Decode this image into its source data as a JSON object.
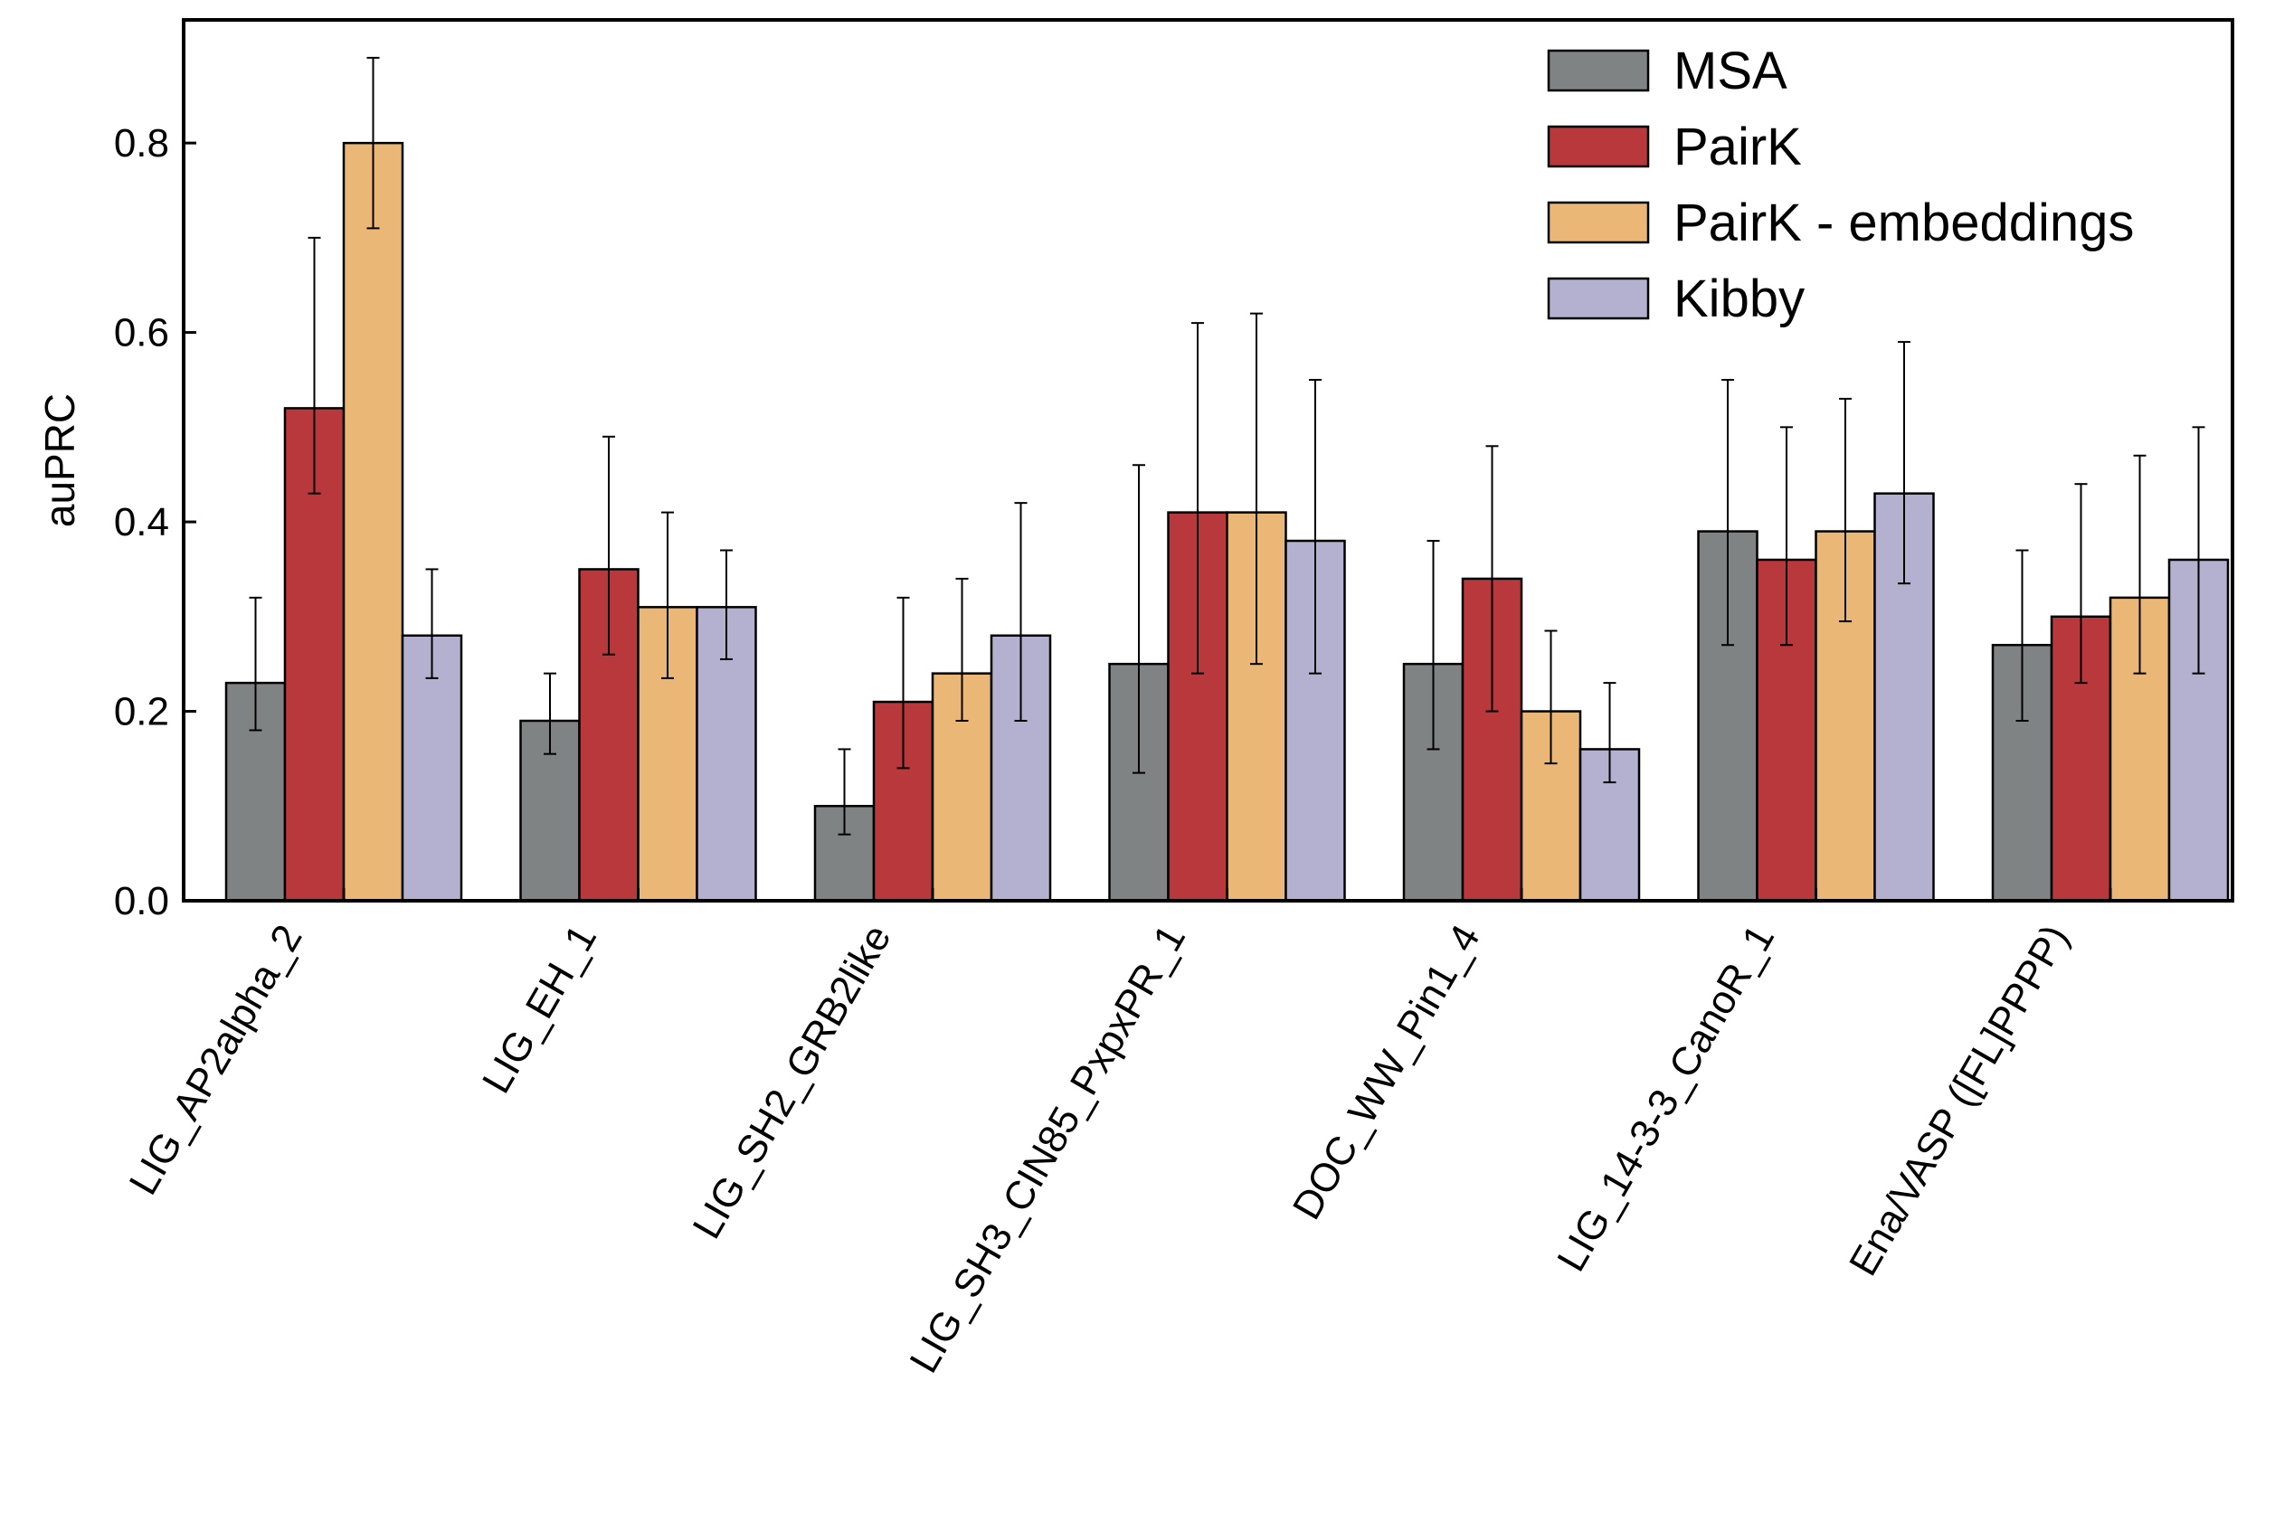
{
  "chart_data": {
    "type": "bar",
    "title": "",
    "xlabel": "",
    "ylabel": "auPRC",
    "ylim": [
      0.0,
      0.93
    ],
    "yticks": [
      "0.0",
      "0.2",
      "0.4",
      "0.6",
      "0.8"
    ],
    "grid": false,
    "legend_position": "top-right",
    "categories": [
      "LIG_AP2alpha_2",
      "LIG_EH_1",
      "LIG_SH2_GRB2like",
      "LIG_SH3_CIN85_PxpxPR_1",
      "DOC_WW_Pin1_4",
      "LIG_14-3-3_CanoR_1",
      "Ena/VASP ([FL]PPPP)"
    ],
    "series": [
      {
        "name": "MSA",
        "color": "#7f8383",
        "values": [
          0.23,
          0.19,
          0.1,
          0.25,
          0.25,
          0.39,
          0.27
        ],
        "err_low": [
          0.18,
          0.155,
          0.07,
          0.135,
          0.16,
          0.27,
          0.19
        ],
        "err_high": [
          0.32,
          0.24,
          0.16,
          0.46,
          0.38,
          0.55,
          0.37
        ]
      },
      {
        "name": "PairK",
        "color": "#b8383c",
        "values": [
          0.52,
          0.35,
          0.21,
          0.41,
          0.34,
          0.36,
          0.3
        ],
        "err_low": [
          0.43,
          0.26,
          0.14,
          0.24,
          0.2,
          0.27,
          0.23
        ],
        "err_high": [
          0.7,
          0.49,
          0.32,
          0.61,
          0.48,
          0.5,
          0.44
        ]
      },
      {
        "name": "PairK - embeddings",
        "color": "#ebb777",
        "values": [
          0.8,
          0.31,
          0.24,
          0.41,
          0.2,
          0.39,
          0.32
        ],
        "err_low": [
          0.71,
          0.235,
          0.19,
          0.25,
          0.145,
          0.295,
          0.24
        ],
        "err_high": [
          0.89,
          0.41,
          0.34,
          0.62,
          0.285,
          0.53,
          0.47
        ]
      },
      {
        "name": "Kibby",
        "color": "#b4b0cf",
        "values": [
          0.28,
          0.31,
          0.28,
          0.38,
          0.16,
          0.43,
          0.36
        ],
        "err_low": [
          0.235,
          0.255,
          0.19,
          0.24,
          0.125,
          0.335,
          0.24
        ],
        "err_high": [
          0.35,
          0.37,
          0.42,
          0.55,
          0.23,
          0.59,
          0.5
        ]
      }
    ]
  }
}
